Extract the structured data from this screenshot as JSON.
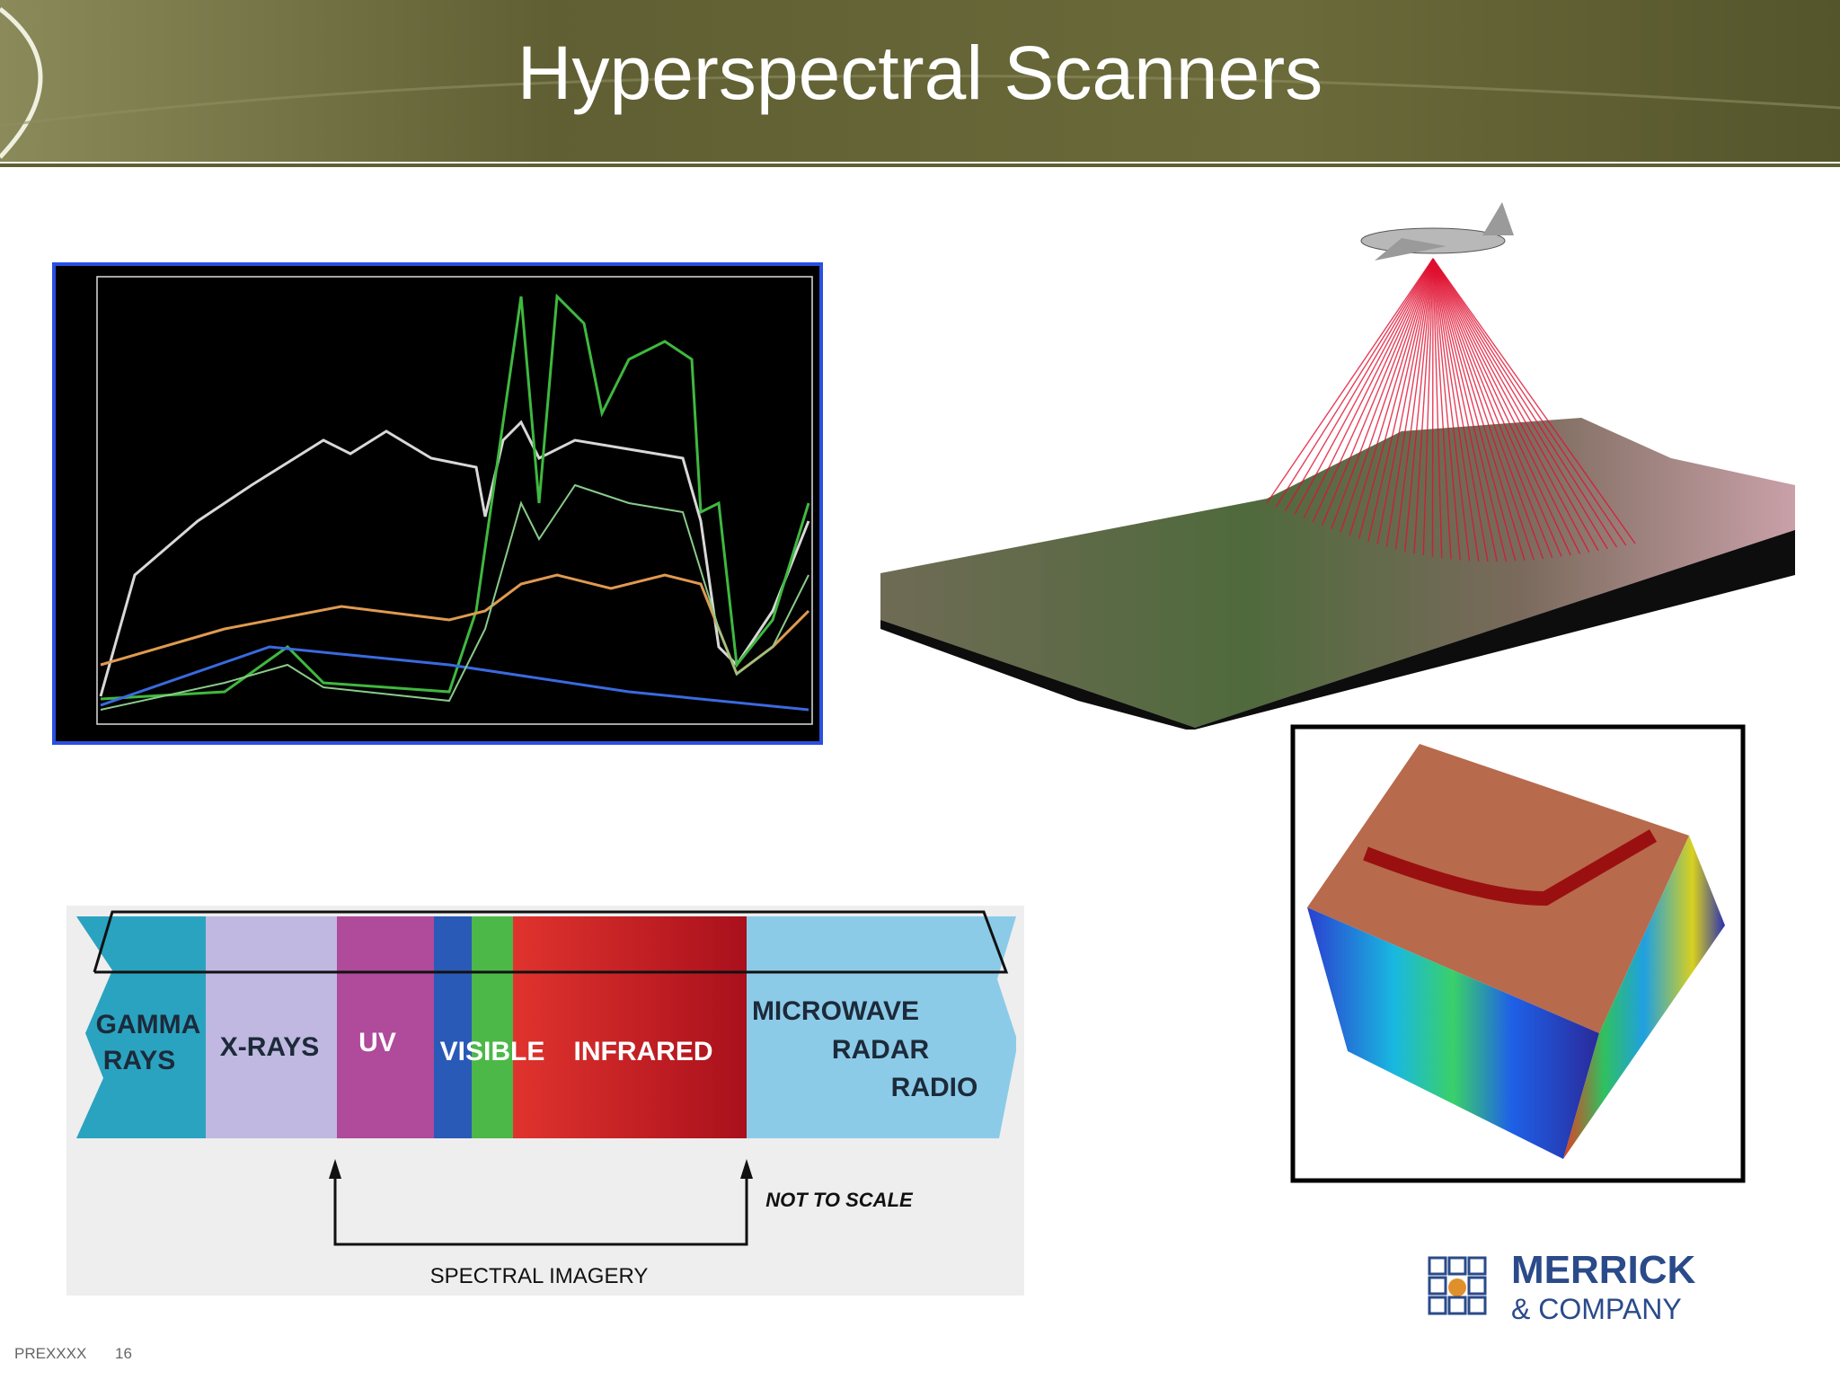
{
  "header": {
    "title": "Hyperspectral Scanners"
  },
  "spectrum_diagram": {
    "bands": [
      {
        "lines": [
          "GAMMA",
          "RAYS"
        ]
      },
      {
        "lines": [
          "X-RAYS"
        ]
      },
      {
        "lines": [
          "UV"
        ]
      },
      {
        "lines": [
          "VISIBLE"
        ]
      },
      {
        "lines": [
          "INFRARED"
        ]
      },
      {
        "lines": [
          "MICROWAVE",
          "RADAR",
          "RADIO"
        ]
      }
    ],
    "note": "NOT TO SCALE",
    "bracket_label": "SPECTRAL IMAGERY"
  },
  "logo": {
    "name": "MERRICK",
    "subname": "& COMPANY"
  },
  "footer": {
    "code": "PREXXXX",
    "page": "16"
  }
}
